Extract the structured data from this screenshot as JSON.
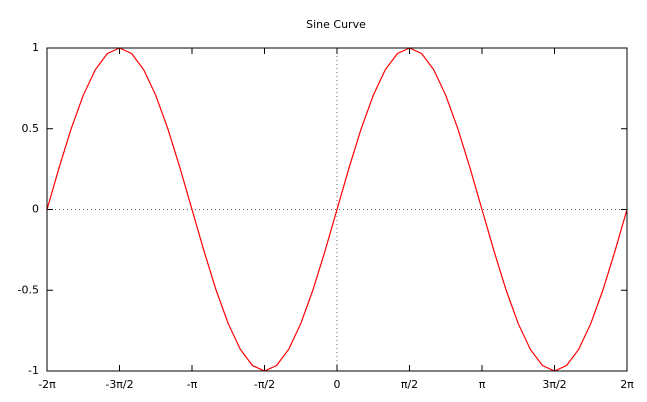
{
  "chart_data": {
    "type": "line",
    "title": "Sine Curve",
    "x": [
      -6.2832,
      -6.0214,
      -5.7596,
      -5.4978,
      -5.236,
      -4.9742,
      -4.7124,
      -4.4506,
      -4.1888,
      -3.927,
      -3.6652,
      -3.4034,
      -3.1416,
      -2.8798,
      -2.618,
      -2.3562,
      -2.0944,
      -1.8326,
      -1.5708,
      -1.309,
      -1.0472,
      -0.7854,
      -0.5236,
      -0.2618,
      0,
      0.2618,
      0.5236,
      0.7854,
      1.0472,
      1.309,
      1.5708,
      1.8326,
      2.0944,
      2.3562,
      2.618,
      2.8798,
      3.1416,
      3.4034,
      3.6652,
      3.927,
      4.1888,
      4.4506,
      4.7124,
      4.9742,
      5.236,
      5.4978,
      5.7596,
      6.0214,
      6.2832
    ],
    "series": [
      {
        "color": "#ff0000",
        "values": [
          0,
          0.2588,
          0.5,
          0.7071,
          0.866,
          0.9659,
          1,
          0.9659,
          0.866,
          0.7071,
          0.5,
          0.2588,
          0,
          -0.2588,
          -0.5,
          -0.7071,
          -0.866,
          -0.9659,
          -1,
          -0.9659,
          -0.866,
          -0.7071,
          -0.5,
          -0.2588,
          0,
          0.2588,
          0.5,
          0.7071,
          0.866,
          0.9659,
          1,
          0.9659,
          0.866,
          0.7071,
          0.5,
          0.2588,
          0,
          -0.2588,
          -0.5,
          -0.7071,
          -0.866,
          -0.9659,
          -1,
          -0.9659,
          -0.866,
          -0.7071,
          -0.5,
          -0.2588,
          0
        ]
      }
    ],
    "xlim": [
      -6.2832,
      6.2832
    ],
    "ylim": [
      -1,
      1
    ],
    "xticks": [
      {
        "value": -6.2832,
        "label": "-2π"
      },
      {
        "value": -4.7124,
        "label": "-3π/2"
      },
      {
        "value": -3.1416,
        "label": "-π"
      },
      {
        "value": -1.5708,
        "label": "-π/2"
      },
      0,
      {
        "value": 1.5708,
        "label": "π/2"
      },
      {
        "value": 3.1416,
        "label": "π"
      },
      {
        "value": 4.7124,
        "label": "3π/2"
      },
      {
        "value": 6.2832,
        "label": "2π"
      }
    ],
    "yticks": [
      -1,
      -0.5,
      0,
      0.5,
      1
    ],
    "zeroaxis": true
  }
}
